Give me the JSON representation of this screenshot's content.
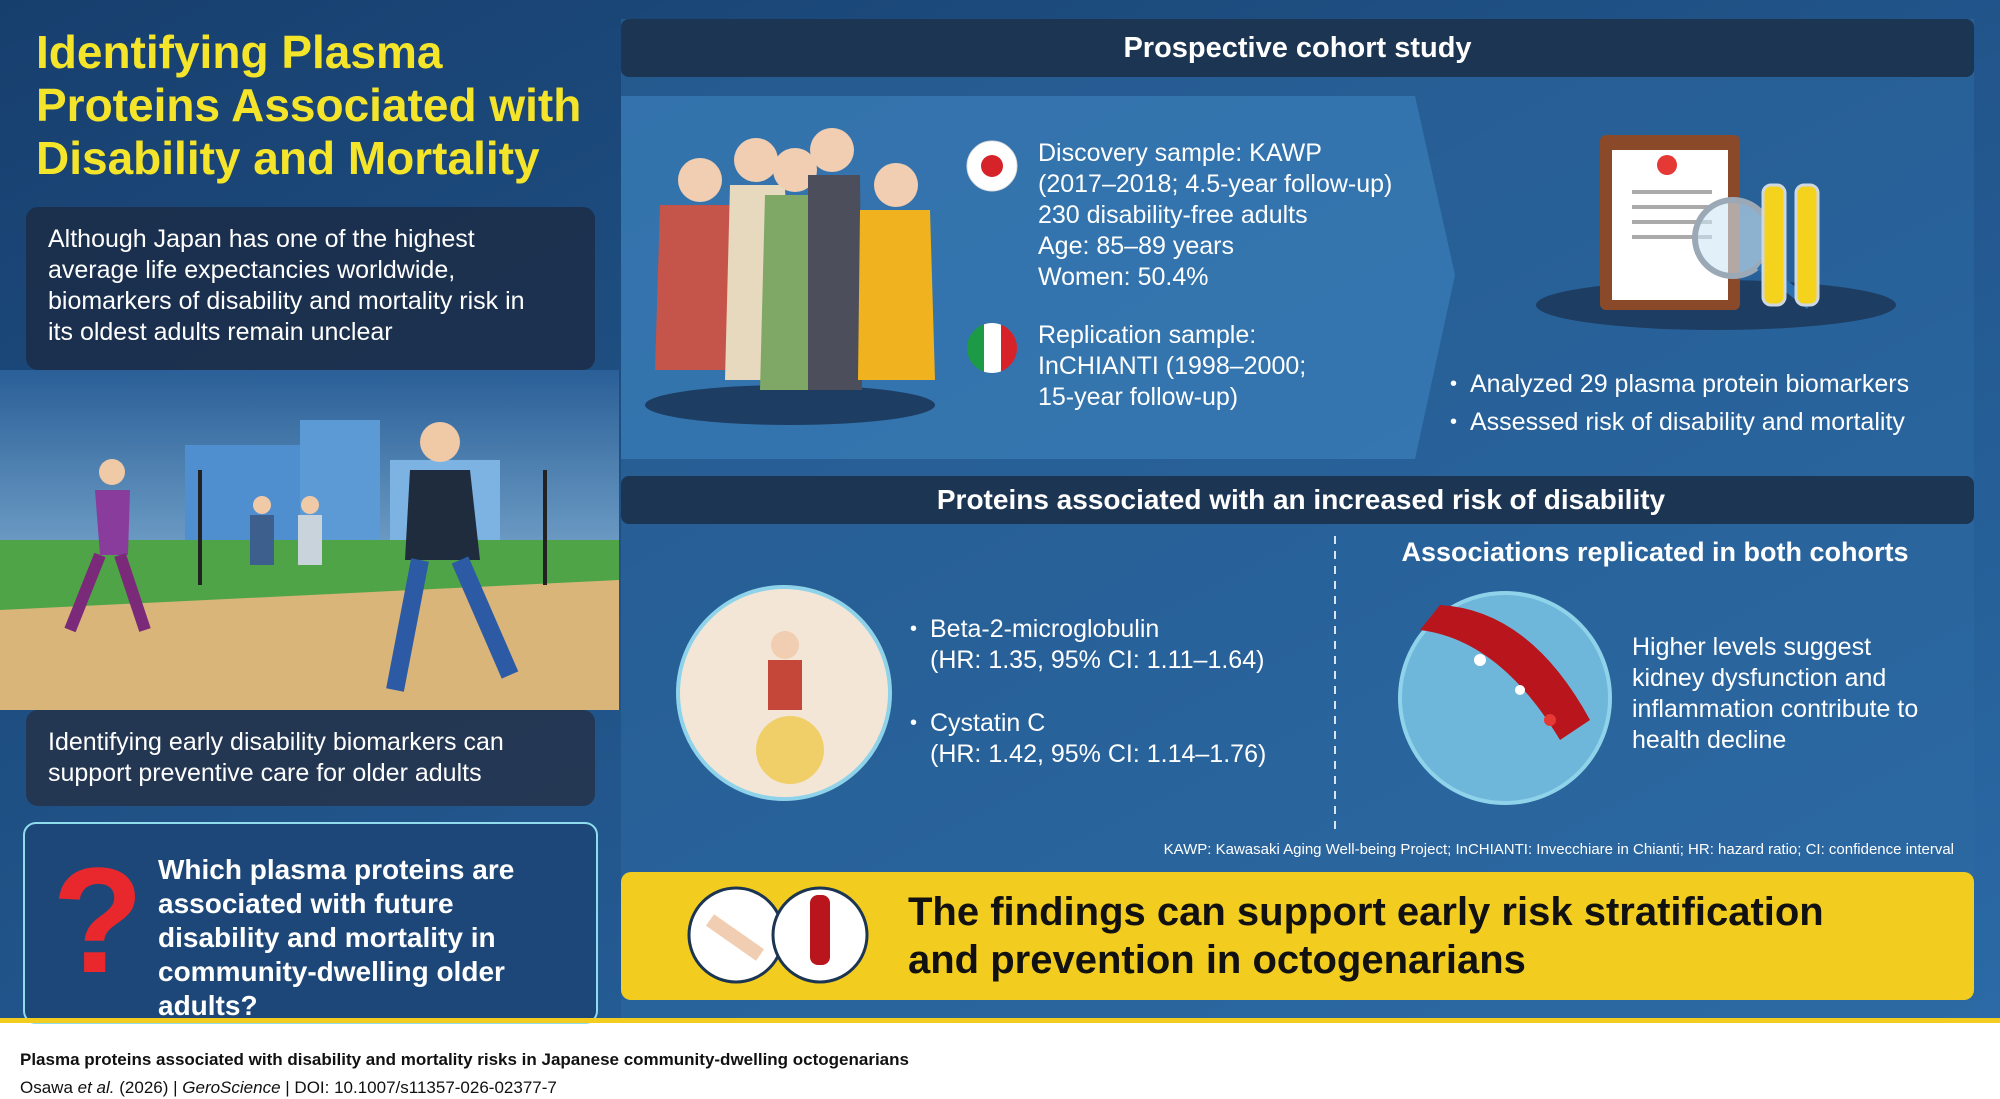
{
  "title": "Identifying Plasma Proteins Associated with Disability and Mortality",
  "background": "Although Japan has one of the highest average life expectancies worldwide, biomarkers of disability and mortality risk in its oldest adults remain unclear",
  "rationale": "Identifying early disability biomarkers can support preventive care for older adults",
  "question": {
    "mark": "?",
    "text": "Which plasma proteins are associated with future disability and mortality in community-dwelling older adults?"
  },
  "study": {
    "header": "Prospective cohort study",
    "discovery": [
      "Discovery sample: KAWP",
      "(2017–2018; 4.5-year follow-up)",
      "230 disability-free adults",
      "Age: 85–89 years",
      "Women: 50.4%"
    ],
    "replication": [
      "Replication sample:",
      "InCHIANTI (1998–2000;",
      "15-year follow-up)"
    ],
    "methods": [
      "Analyzed 29 plasma protein biomarkers",
      "Assessed risk of disability and mortality"
    ]
  },
  "results": {
    "header": "Proteins associated with an increased risk of disability",
    "proteins": [
      {
        "name": "Beta-2-microglobulin",
        "stats": "(HR: 1.35, 95% CI: 1.11–1.64)"
      },
      {
        "name": "Cystatin C",
        "stats": "(HR: 1.42, 95% CI: 1.14–1.76)"
      }
    ],
    "replicated": {
      "header": "Associations replicated in both cohorts",
      "text": "Higher levels suggest kidney dysfunction and inflammation contribute to health decline"
    },
    "abbreviations": "KAWP: Kawasaki Aging Well-being Project; InCHIANTI: Invecchiare in Chianti; HR: hazard ratio; CI: confidence interval"
  },
  "conclusion": "The findings can support early risk stratification and prevention in octogenarians",
  "footer": {
    "title": "Plasma proteins associated with disability and mortality risks in Japanese community-dwelling octogenarians",
    "authors": "Osawa",
    "etal": "et al.",
    "year": "(2026) |",
    "journal": "GeroScience",
    "doi": "| DOI: 10.1007/s11357-026-02377-7"
  }
}
